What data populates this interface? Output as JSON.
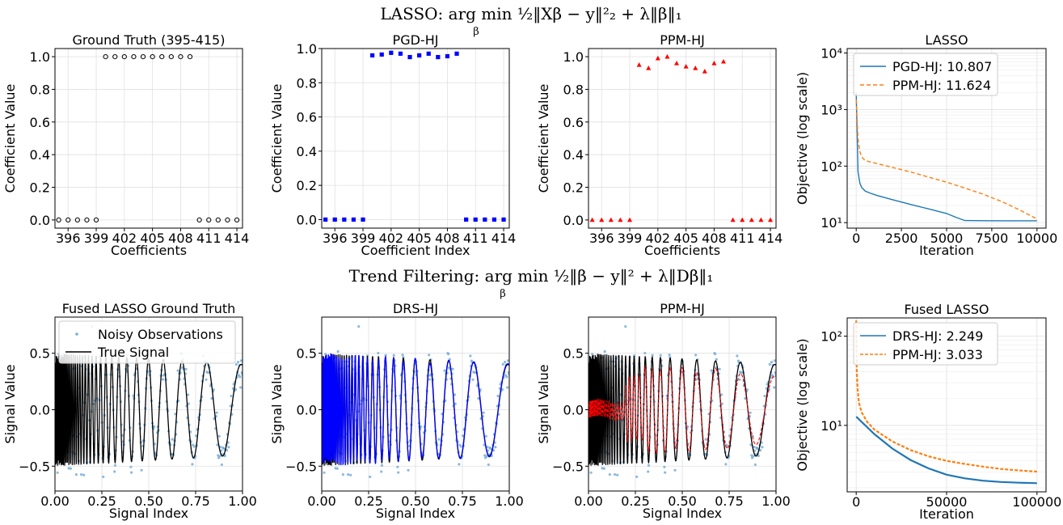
{
  "suptitles": {
    "top": "LASSO: arg min ½‖Xβ − y‖²₂ + λ‖β‖₁",
    "top_sub": "β",
    "bottom": "Trend Filtering: arg min ½‖β − y‖² + λ‖Dβ‖₁",
    "bottom_sub": "β"
  },
  "chart_data": [
    {
      "id": "ground-truth",
      "type": "scatter",
      "title": "Ground Truth (395-415)",
      "xlabel": "Coefficients",
      "ylabel": "Coefficient Value",
      "xlim": [
        394.6,
        414.6
      ],
      "ylim": [
        -0.05,
        1.05
      ],
      "xticks": [
        396,
        399,
        402,
        405,
        408,
        411,
        414
      ],
      "yticks": [
        0.0,
        0.2,
        0.4,
        0.6,
        0.8,
        1.0
      ],
      "grid": true,
      "series": [
        {
          "marker": "circle-open",
          "color": "#000000",
          "x": [
            395,
            396,
            397,
            398,
            399,
            400,
            401,
            402,
            403,
            404,
            405,
            406,
            407,
            408,
            409,
            410,
            411,
            412,
            413,
            414
          ],
          "y": [
            0,
            0,
            0,
            0,
            0,
            1,
            1,
            1,
            1,
            1,
            1,
            1,
            1,
            1,
            1,
            0,
            0,
            0,
            0,
            0
          ]
        }
      ]
    },
    {
      "id": "pgd-hj",
      "type": "scatter",
      "title": "PGD-HJ",
      "xlabel": "Coefficient Index",
      "ylabel": "Coefficient Value",
      "xlim": [
        394.6,
        414.6
      ],
      "ylim": [
        -0.05,
        1.0
      ],
      "xticks": [
        396,
        399,
        402,
        405,
        408,
        411,
        414
      ],
      "yticks": [
        0.0,
        0.2,
        0.4,
        0.6,
        0.8,
        1.0
      ],
      "grid": true,
      "series": [
        {
          "marker": "square",
          "color": "#0000ff",
          "x": [
            395,
            396,
            397,
            398,
            399,
            400,
            401,
            402,
            403,
            404,
            405,
            406,
            407,
            408,
            409,
            410,
            411,
            412,
            413,
            414
          ],
          "y": [
            0,
            0,
            0,
            0,
            0,
            0.96,
            0.965,
            0.975,
            0.97,
            0.95,
            0.96,
            0.97,
            0.95,
            0.955,
            0.97,
            0,
            0,
            0,
            0,
            0
          ]
        }
      ]
    },
    {
      "id": "ppm-hj-lasso",
      "type": "scatter",
      "title": "PPM-HJ",
      "xlabel": "Coefficients",
      "ylabel": "Coefficient Value",
      "xlim": [
        394.6,
        414.6
      ],
      "ylim": [
        -0.05,
        1.05
      ],
      "xticks": [
        396,
        399,
        402,
        405,
        408,
        411,
        414
      ],
      "yticks": [
        0.0,
        0.2,
        0.4,
        0.6,
        0.8,
        1.0
      ],
      "grid": true,
      "series": [
        {
          "marker": "triangle",
          "color": "#ff0000",
          "x": [
            395,
            396,
            397,
            398,
            399,
            400,
            401,
            402,
            403,
            404,
            405,
            406,
            407,
            408,
            409,
            410,
            411,
            412,
            413,
            414
          ],
          "y": [
            0,
            0,
            0,
            0,
            0,
            0.95,
            0.93,
            0.99,
            1.0,
            0.96,
            0.94,
            0.93,
            0.91,
            0.96,
            0.97,
            0,
            0,
            0,
            0,
            0
          ]
        }
      ]
    },
    {
      "id": "lasso-objective",
      "type": "line",
      "title": "LASSO",
      "xlabel": "Iteration",
      "ylabel": "Objective (log scale)",
      "xlim": [
        -500,
        10500
      ],
      "ylog": true,
      "ylim": [
        8,
        12000
      ],
      "xticks": [
        0,
        2500,
        5000,
        7500,
        10000
      ],
      "yticks": [
        10,
        100,
        1000,
        10000
      ],
      "ytick_labels": [
        "10¹",
        "10²",
        "10³",
        "10⁴"
      ],
      "grid": true,
      "legend": "top-left",
      "series": [
        {
          "name": "PGD-HJ: 10.807",
          "color": "#1f77b4",
          "dash": "",
          "x": [
            0,
            100,
            200,
            300,
            500,
            800,
            1200,
            2000,
            3000,
            4000,
            5000,
            5500,
            6000,
            7000,
            8000,
            9000,
            10000
          ],
          "y": [
            2000,
            80,
            50,
            42,
            36,
            33,
            30,
            25.5,
            21,
            17.5,
            14.5,
            12.5,
            10.9,
            10.82,
            10.81,
            10.807,
            10.807
          ]
        },
        {
          "name": "PPM-HJ: 11.624",
          "color": "#ff7f0e",
          "dash": "5,3",
          "x": [
            0,
            100,
            200,
            300,
            500,
            800,
            1200,
            2000,
            3000,
            4000,
            5000,
            6000,
            7000,
            8000,
            9000,
            10000
          ],
          "y": [
            1500,
            300,
            180,
            145,
            125,
            118,
            110,
            95,
            79,
            64,
            52,
            41,
            32,
            24,
            17,
            11.624
          ]
        }
      ]
    },
    {
      "id": "fused-gt",
      "type": "line",
      "title": "Fused LASSO Ground Truth",
      "xlabel": "Signal Index",
      "ylabel": "Signal Value",
      "xlim": [
        0,
        1
      ],
      "ylim": [
        -0.72,
        0.82
      ],
      "xticks": [
        0.0,
        0.25,
        0.5,
        0.75,
        1.0
      ],
      "xtick_labels": [
        "0.00",
        "0.25",
        "0.50",
        "0.75",
        "1.00"
      ],
      "yticks": [
        -0.5,
        0.0,
        0.5
      ],
      "ytick_labels": [
        "−0.5",
        "0.0",
        "0.5"
      ],
      "grid": true,
      "legend": "top-left",
      "legend_entries": [
        "Noisy Observations",
        "True Signal"
      ],
      "signal": "0.5·sin(2π·6/(x+0.15))·(1−0.2x)",
      "series": [
        {
          "name": "Noisy Observations",
          "kind": "scatter",
          "color": "#1f77b4"
        },
        {
          "name": "True Signal",
          "kind": "line",
          "color": "#000000"
        }
      ]
    },
    {
      "id": "drs-hj",
      "type": "line",
      "title": "DRS-HJ",
      "xlabel": "Signal Index",
      "ylabel": "Signal Value",
      "xlim": [
        0,
        1
      ],
      "ylim": [
        -0.72,
        0.82
      ],
      "xticks": [
        0.0,
        0.25,
        0.5,
        0.75,
        1.0
      ],
      "xtick_labels": [
        "0.00",
        "0.25",
        "0.50",
        "0.75",
        "1.00"
      ],
      "yticks": [
        -0.5,
        0.0,
        0.5
      ],
      "ytick_labels": [
        "−0.5",
        "0.0",
        "0.5"
      ],
      "grid": true,
      "series": [
        {
          "kind": "scatter",
          "color": "#1f77b4"
        },
        {
          "kind": "line",
          "color": "#000000"
        },
        {
          "kind": "estimate",
          "color": "#0000ff"
        }
      ]
    },
    {
      "id": "ppm-hj-tf",
      "type": "line",
      "title": "PPM-HJ",
      "xlabel": "Signal Index",
      "ylabel": "Signal Value",
      "xlim": [
        0,
        1
      ],
      "ylim": [
        -0.72,
        0.82
      ],
      "xticks": [
        0.0,
        0.25,
        0.5,
        0.75,
        1.0
      ],
      "xtick_labels": [
        "0.00",
        "0.25",
        "0.50",
        "0.75",
        "1.00"
      ],
      "yticks": [
        -0.5,
        0.0,
        0.5
      ],
      "ytick_labels": [
        "−0.5",
        "0.0",
        "0.5"
      ],
      "grid": true,
      "series": [
        {
          "kind": "scatter",
          "color": "#1f77b4"
        },
        {
          "kind": "line",
          "color": "#000000"
        },
        {
          "kind": "estimate-smooth",
          "color": "#ff0000",
          "dash": "4,2"
        }
      ]
    },
    {
      "id": "fused-objective",
      "type": "line",
      "title": "Fused LASSO",
      "xlabel": "Iteration",
      "ylabel": "Objective (log scale)",
      "xlim": [
        -5000,
        105000
      ],
      "ylog": true,
      "ylim": [
        1.8,
        160
      ],
      "xticks": [
        0,
        50000,
        100000
      ],
      "yticks": [
        10,
        100
      ],
      "ytick_labels": [
        "10¹",
        "10²"
      ],
      "grid": true,
      "legend": "top-left",
      "series": [
        {
          "name": "DRS-HJ: 2.249",
          "color": "#1f77b4",
          "dash": "",
          "x": [
            0,
            5000,
            10000,
            20000,
            30000,
            40000,
            50000,
            60000,
            70000,
            80000,
            90000,
            100000
          ],
          "y": [
            12.5,
            10.0,
            8.0,
            5.5,
            4.1,
            3.3,
            2.8,
            2.55,
            2.4,
            2.32,
            2.28,
            2.249
          ]
        },
        {
          "name": "PPM-HJ: 3.033",
          "color": "#ff7f0e",
          "dash": "4,2",
          "x": [
            0,
            300,
            800,
            1500,
            3000,
            6000,
            10000,
            20000,
            30000,
            40000,
            50000,
            60000,
            70000,
            80000,
            90000,
            100000
          ],
          "y": [
            150,
            40,
            25,
            18,
            14,
            11,
            9,
            6.6,
            5.3,
            4.5,
            4.0,
            3.7,
            3.45,
            3.25,
            3.13,
            3.033
          ]
        }
      ]
    }
  ]
}
